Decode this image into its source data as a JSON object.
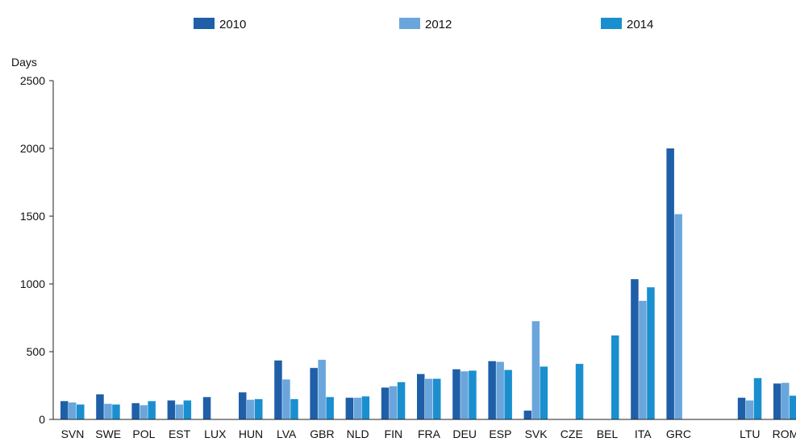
{
  "chart_data": {
    "type": "bar",
    "ylabel": "Days",
    "ylim": [
      0,
      2500
    ],
    "yticks": [
      0,
      500,
      1000,
      1500,
      2000,
      2500
    ],
    "categories": [
      "SVN",
      "SWE",
      "POL",
      "EST",
      "LUX",
      "HUN",
      "LVA",
      "GBR",
      "NLD",
      "FIN",
      "FRA",
      "DEU",
      "ESP",
      "SVK",
      "CZE",
      "BEL",
      "ITA",
      "GRC",
      "",
      "LTU",
      "ROM"
    ],
    "series": [
      {
        "name": "2010",
        "color": "#1f5fa8",
        "values": [
          135,
          185,
          120,
          140,
          165,
          200,
          435,
          380,
          160,
          235,
          335,
          370,
          430,
          65,
          null,
          null,
          1035,
          2000,
          null,
          160,
          265
        ]
      },
      {
        "name": "2012",
        "color": "#6aa6dc",
        "values": [
          125,
          115,
          105,
          110,
          null,
          145,
          295,
          440,
          160,
          245,
          300,
          355,
          425,
          725,
          null,
          null,
          875,
          1515,
          null,
          140,
          270
        ]
      },
      {
        "name": "2014",
        "color": "#1a8fd0",
        "values": [
          110,
          110,
          135,
          140,
          null,
          150,
          150,
          165,
          170,
          275,
          300,
          360,
          365,
          390,
          410,
          620,
          975,
          null,
          null,
          305,
          175
        ]
      }
    ],
    "legend_position": "top",
    "grid": false
  }
}
